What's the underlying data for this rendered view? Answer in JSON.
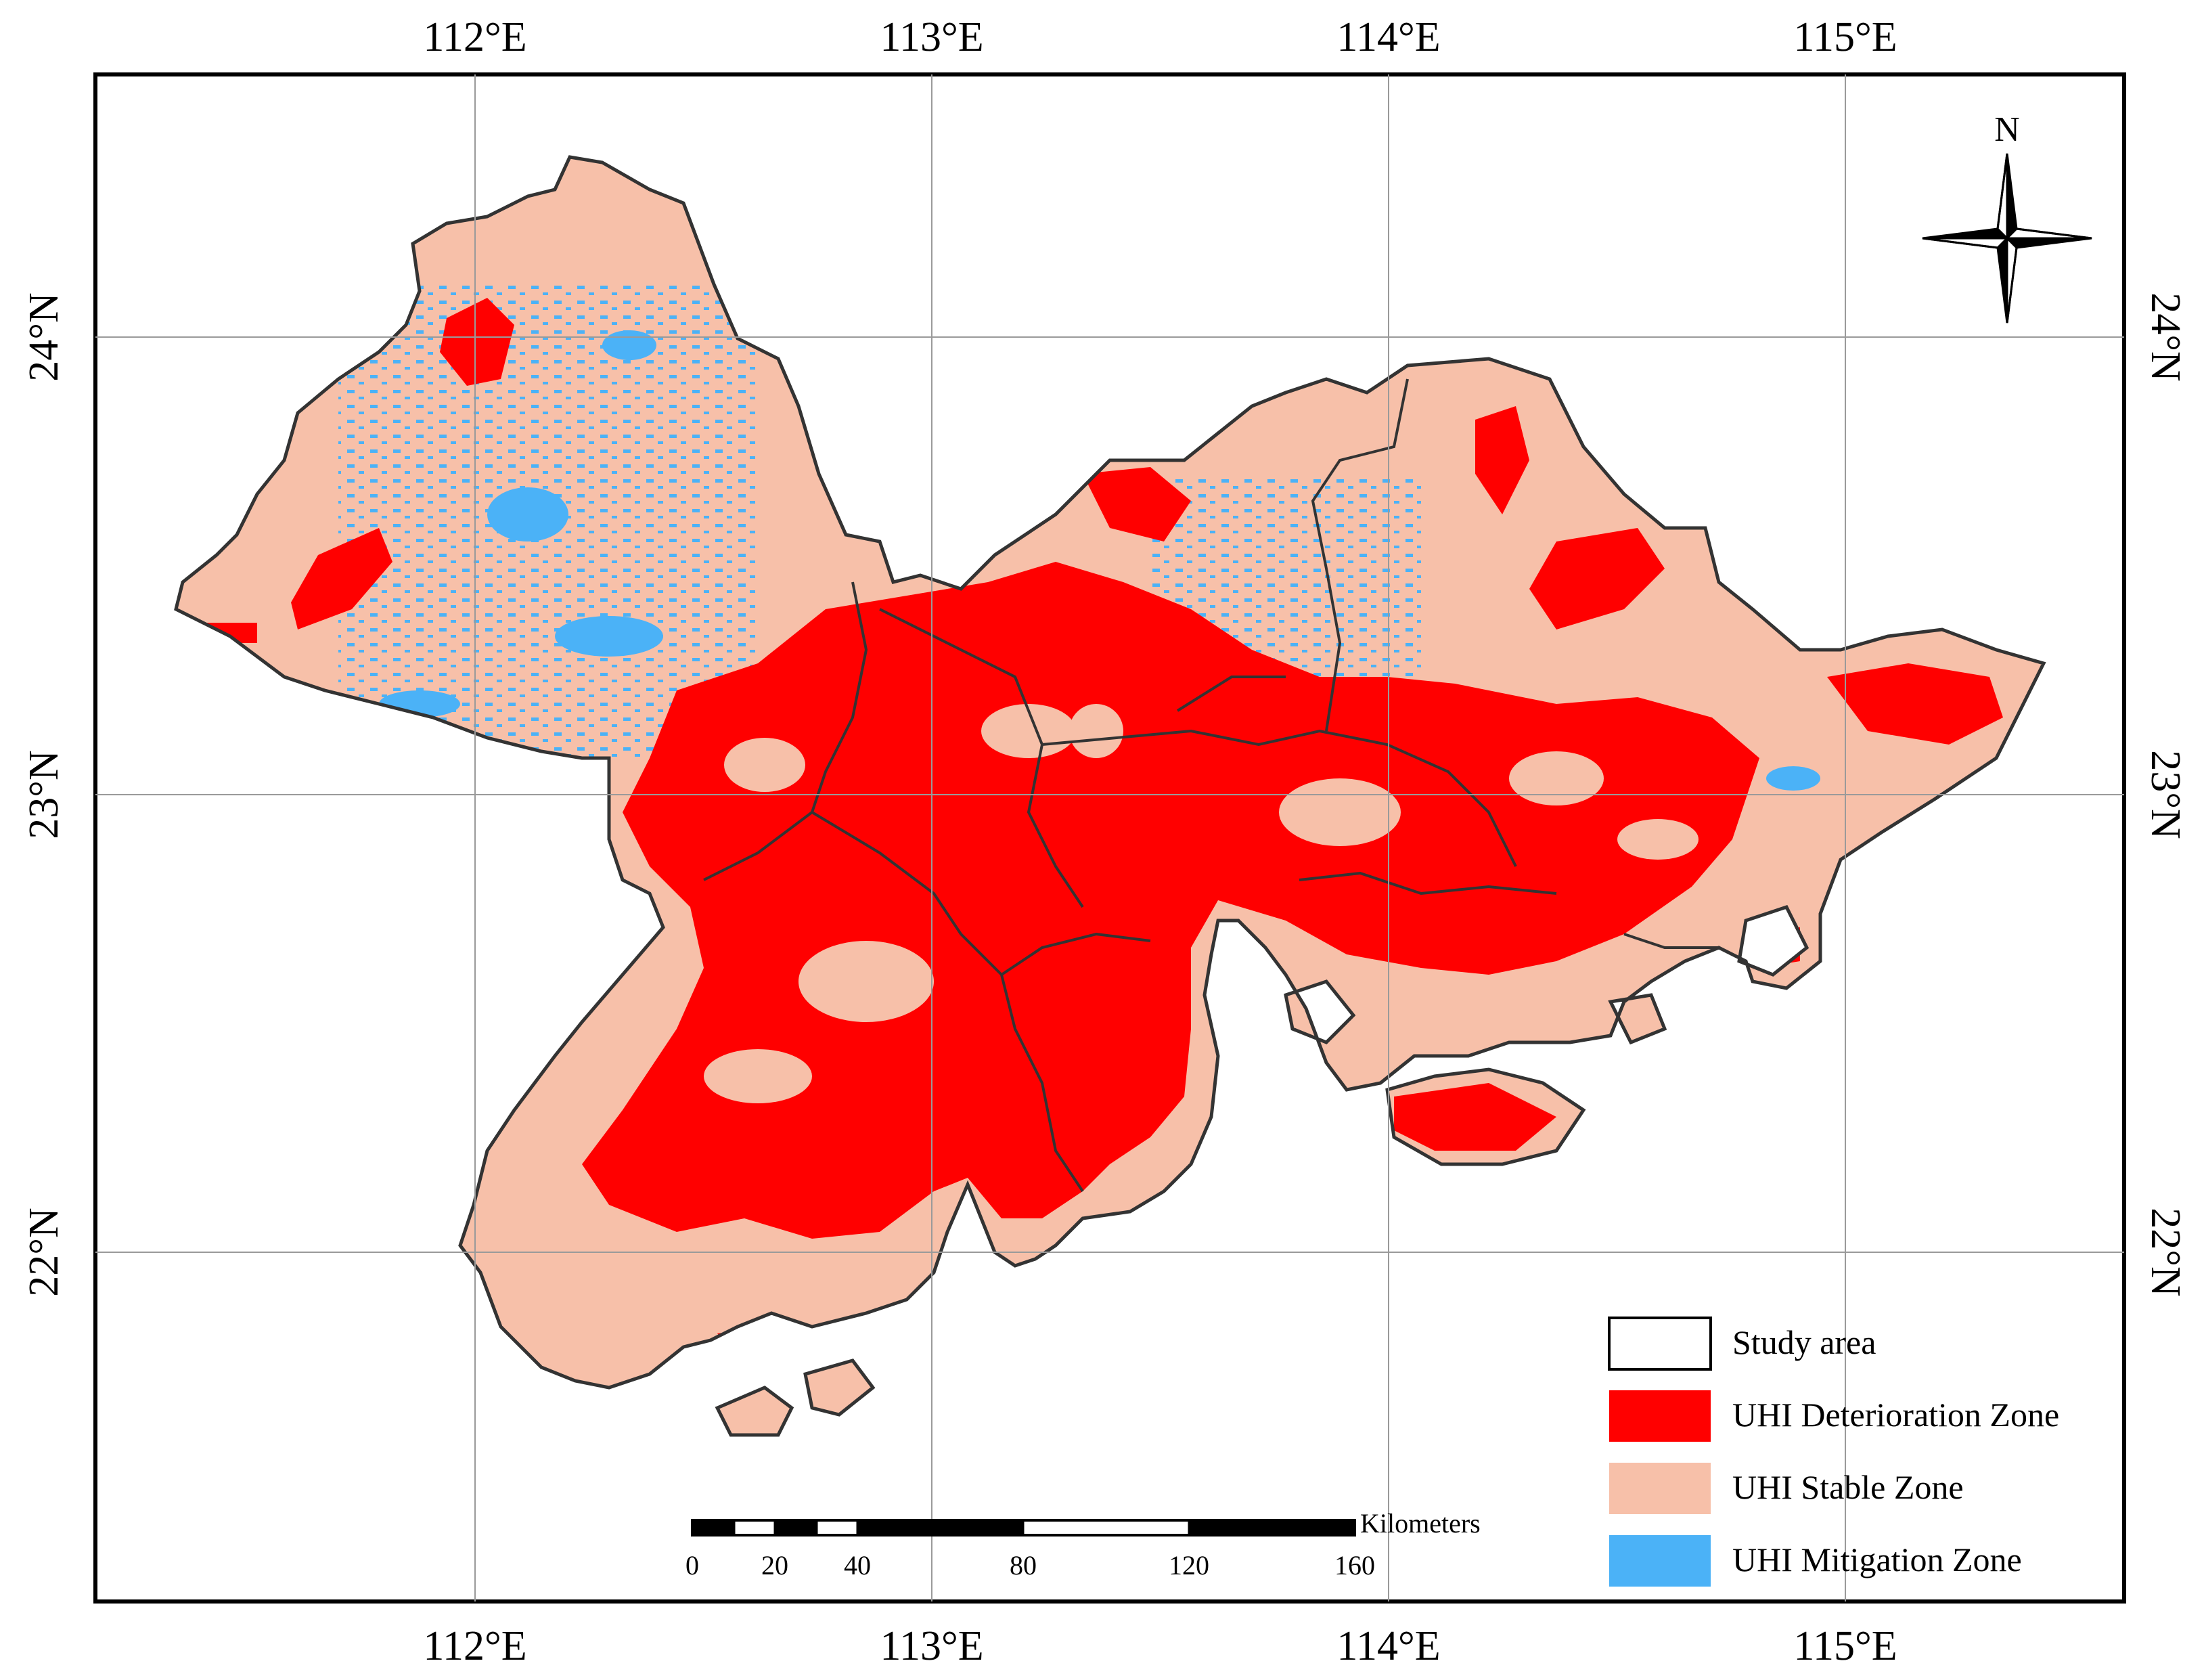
{
  "graticule": {
    "lon_labels": [
      "112°E",
      "113°E",
      "114°E",
      "115°E"
    ],
    "lat_labels": [
      "24°N",
      "23°N",
      "22°N"
    ]
  },
  "north_arrow": {
    "label": "N"
  },
  "legend": {
    "items": [
      {
        "label": "Study area",
        "color": "#ffffff",
        "border": "#000000"
      },
      {
        "label": "UHI Deterioration Zone",
        "color": "#ff0000"
      },
      {
        "label": "UHI Stable Zone",
        "color": "#f7c0a9"
      },
      {
        "label": "UHI Mitigation Zone",
        "color": "#4bb2f7"
      }
    ]
  },
  "scale_bar": {
    "unit": "Kilometers",
    "ticks": [
      "0",
      "20",
      "40",
      "80",
      "120",
      "160"
    ]
  },
  "colors": {
    "deterioration": "#ff0000",
    "stable": "#f7c0a9",
    "mitigation": "#4bb2f7",
    "boundary": "#333333",
    "grid": "#9a9a9a"
  }
}
